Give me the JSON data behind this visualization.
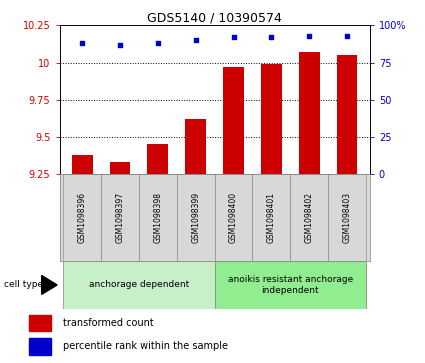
{
  "title": "GDS5140 / 10390574",
  "categories": [
    "GSM1098396",
    "GSM1098397",
    "GSM1098398",
    "GSM1098399",
    "GSM1098400",
    "GSM1098401",
    "GSM1098402",
    "GSM1098403"
  ],
  "bar_values": [
    9.38,
    9.33,
    9.45,
    9.62,
    9.97,
    9.99,
    10.07,
    10.05
  ],
  "scatter_values": [
    88,
    87,
    88,
    90,
    92,
    92,
    93,
    93
  ],
  "ylim_left": [
    9.25,
    10.25
  ],
  "ylim_right": [
    0,
    100
  ],
  "yticks_left": [
    9.25,
    9.5,
    9.75,
    10.0,
    10.25
  ],
  "ytick_labels_left": [
    "9.25",
    "9.5",
    "9.75",
    "10",
    "10.25"
  ],
  "yticks_right": [
    0,
    25,
    50,
    75,
    100
  ],
  "ytick_labels_right": [
    "0",
    "25",
    "50",
    "75",
    "100%"
  ],
  "bar_color": "#cc0000",
  "scatter_color": "#0000cc",
  "group1_label": "anchorage dependent",
  "group2_label": "anoikis resistant anchorage\nindependent",
  "group1_indices": [
    0,
    1,
    2,
    3
  ],
  "group2_indices": [
    4,
    5,
    6,
    7
  ],
  "group1_color": "#c8f0c8",
  "group2_color": "#90ee90",
  "cell_type_label": "cell type",
  "legend1_label": "transformed count",
  "legend2_label": "percentile rank within the sample",
  "bg_color": "#d8d8d8",
  "bar_baseline": 9.25
}
